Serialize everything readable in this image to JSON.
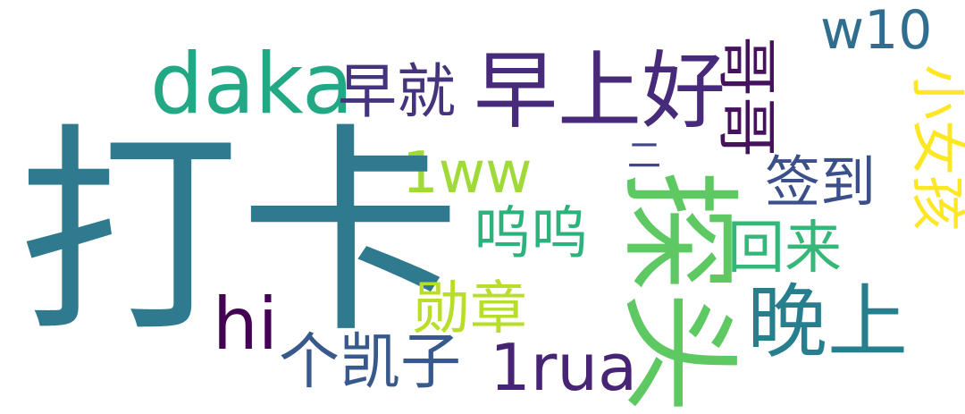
{
  "words": [
    {
      "text": "打卡",
      "color": "#2f7a8e"
    },
    {
      "text": "探头",
      "color": "#5ec962"
    },
    {
      "text": "早上好",
      "color": "#472a7a"
    },
    {
      "text": "daka",
      "color": "#22a884"
    },
    {
      "text": "晚上",
      "color": "#277f8e"
    },
    {
      "text": "哥哥",
      "color": "#46125e"
    },
    {
      "text": "小女孩",
      "color": "#fde725"
    },
    {
      "text": "w10",
      "color": "#2f6e8e"
    },
    {
      "text": "早就",
      "color": "#46337e"
    },
    {
      "text": "1ww",
      "color": "#a0da39"
    },
    {
      "text": "签到",
      "color": "#3b4f8a"
    },
    {
      "text": "呜呜",
      "color": "#2db27d"
    },
    {
      "text": "回来",
      "color": "#35b779"
    },
    {
      "text": "勋章",
      "color": "#b8de29"
    },
    {
      "text": "hi",
      "color": "#440154"
    },
    {
      "text": "个凯子",
      "color": "#38598c"
    },
    {
      "text": "1rua",
      "color": "#482475"
    },
    {
      "text": "二",
      "color": "#404688"
    }
  ]
}
